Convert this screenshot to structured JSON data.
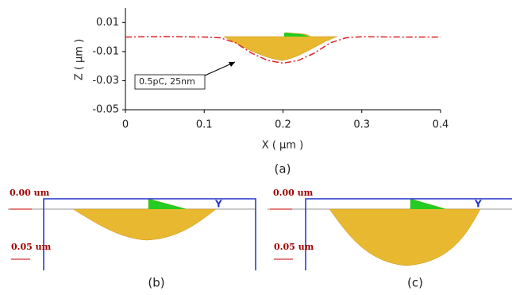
{
  "chart_data": {
    "type": "line",
    "xlabel": "X ( μm )",
    "ylabel": "Z ( μm )",
    "annotation": "0.5pC, 25nm",
    "caption": "(a)",
    "xlim": [
      0,
      0.4
    ],
    "xticks": [
      0,
      0.1,
      0.2,
      0.3,
      0.4
    ],
    "ylim": [
      -0.05,
      0.02
    ],
    "yticks": [
      0.01,
      -0.01,
      -0.03,
      -0.05
    ],
    "x": [
      0,
      0.05,
      0.1,
      0.12,
      0.14,
      0.16,
      0.18,
      0.2,
      0.22,
      0.24,
      0.26,
      0.28,
      0.3,
      0.35,
      0.4
    ],
    "series": [
      {
        "color": "#e02020",
        "values": [
          0,
          0.0003,
          0,
          -0.0005,
          -0.004,
          -0.011,
          -0.016,
          -0.018,
          -0.016,
          -0.011,
          -0.004,
          -0.0005,
          0.0002,
          0,
          0
        ]
      }
    ]
  },
  "panels": [
    {
      "top_label": "0.00 um",
      "scale_label": "0.05 um",
      "axis_label": "Y",
      "caption": "(b)"
    },
    {
      "top_label": "0.00 um",
      "scale_label": "0.05 um",
      "axis_label": "Y",
      "caption": "(c)"
    }
  ]
}
